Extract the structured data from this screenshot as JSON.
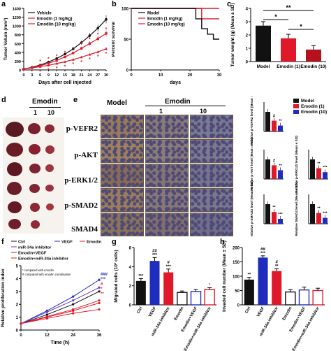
{
  "panel_labels": {
    "a": "a",
    "b": "b",
    "c": "c",
    "d": "d",
    "e": "e",
    "f": "f",
    "g": "g",
    "h": "h"
  },
  "colors": {
    "black": "#111111",
    "red": "#e0192a",
    "darkred": "#b5121b",
    "blue": "#1f2dbf",
    "navy": "#161f8c",
    "purple": "#6a3cc8"
  },
  "panel_d": {
    "group_label": "Emodin",
    "doses": [
      "1",
      "10"
    ]
  },
  "panel_e": {
    "columns": [
      "Model",
      "1",
      "10"
    ],
    "group_label": "Emodin",
    "rows": [
      "p-VEFR2",
      "p-AKT",
      "p-ERK1/2",
      "p-SMAD2",
      "SMAD4"
    ]
  },
  "chart_data": [
    {
      "id": "a",
      "type": "line",
      "ylabel": "Tumor Volum (mm³)",
      "xlabel": "Days after cell injected",
      "x": [
        0,
        3,
        6,
        9,
        12,
        15,
        18,
        21,
        24,
        27,
        30
      ],
      "xticks": [
        "0",
        "3",
        "6",
        "9",
        "12",
        "15",
        "18",
        "21",
        "24",
        "27",
        "30"
      ],
      "ylim": [
        0,
        1400
      ],
      "yticks": [
        "0",
        "200",
        "400",
        "600",
        "800",
        "1000",
        "1200",
        "1400"
      ],
      "series": [
        {
          "name": "Vehicle",
          "color": "#111111",
          "values": [
            20,
            60,
            110,
            180,
            260,
            360,
            480,
            620,
            780,
            950,
            1150
          ]
        },
        {
          "name": "Emodin (1 mg/kg)",
          "color": "#e0192a",
          "values": [
            20,
            55,
            95,
            150,
            215,
            295,
            385,
            490,
            600,
            710,
            830
          ]
        },
        {
          "name": "Emodiin (10 mg/kg)",
          "color": "#e0192a",
          "values": [
            20,
            45,
            75,
            105,
            145,
            185,
            235,
            290,
            350,
            410,
            480
          ]
        }
      ]
    },
    {
      "id": "b",
      "type": "line",
      "ylabel": "Percent survival",
      "xlabel": "days",
      "xlim": [
        0,
        30
      ],
      "xticks": [
        "0",
        "10",
        "20",
        "30"
      ],
      "ylim": [
        0,
        100
      ],
      "yticks": [
        "0",
        "50",
        "100"
      ],
      "series": [
        {
          "name": "Model",
          "color": "#111111",
          "x": [
            0,
            22,
            22,
            24,
            24,
            26,
            26,
            28,
            28,
            30
          ],
          "values": [
            100,
            100,
            83,
            83,
            67,
            67,
            58,
            58,
            50,
            50
          ]
        },
        {
          "name": "Emodin (1 mg/kg)",
          "color": "#e0192a",
          "x": [
            0,
            24,
            24,
            30
          ],
          "values": [
            100,
            100,
            83,
            83
          ]
        },
        {
          "name": "Emodin (10 mg/kg)",
          "color": "#e0192a",
          "x": [
            0,
            30
          ],
          "values": [
            100,
            100
          ]
        }
      ]
    },
    {
      "id": "c",
      "type": "bar",
      "ylabel": "Tumor weight (g) (Mean ± SD)",
      "categories": [
        "Model",
        "Emodin (1)",
        "Emodin (10)"
      ],
      "values": [
        2.7,
        1.75,
        0.9
      ],
      "errors": [
        0.3,
        0.3,
        0.3
      ],
      "colors": [
        "#111111",
        "#e0192a",
        "#b5121b"
      ],
      "ylim": [
        0,
        4
      ],
      "yticks": [
        "0",
        "1",
        "2",
        "3",
        "4"
      ],
      "significance": [
        {
          "pair": [
            0,
            1
          ],
          "label": "*"
        },
        {
          "pair": [
            0,
            2
          ],
          "label": "**"
        },
        {
          "pair": [
            1,
            2
          ],
          "label": "*"
        }
      ]
    },
    {
      "id": "e-right",
      "type": "bar",
      "legend": [
        "Model",
        "Emodin (1)",
        "Emodin (10)"
      ],
      "legend_colors": [
        "#111111",
        "#e0192a",
        "#1f2dbf"
      ],
      "subcharts": [
        {
          "ylabel": "Relative p-VEFR2 level (Mean ± SD)",
          "values": [
            1.0,
            0.55,
            0.3
          ],
          "marks": [
            "",
            "#",
            "**"
          ],
          "ylim": [
            0,
            1.5
          ]
        },
        {
          "ylabel": "Relative p-AKT level (Mean ± SD)",
          "values": [
            1.0,
            0.7,
            0.45
          ],
          "marks": [
            "",
            "#",
            "**"
          ],
          "ylim": [
            0,
            1.5
          ]
        },
        {
          "ylabel": "Relative p-ERK1/2 level (Mean ± SD)",
          "values": [
            1.0,
            0.55,
            0.35
          ],
          "marks": [
            "",
            "**",
            "***"
          ],
          "ylim": [
            0,
            1.5
          ]
        },
        {
          "ylabel": "Relative p-SMAD2 level (Mean ± SD)",
          "values": [
            1.0,
            0.6,
            0.25
          ],
          "marks": [
            "",
            "**",
            "***"
          ],
          "ylim": [
            0,
            1.5
          ]
        },
        {
          "ylabel": "Relative SMAD4 level (Mean ± SD)",
          "values": [
            1.0,
            0.55,
            0.3
          ],
          "marks": [
            "",
            "**",
            "***"
          ],
          "ylim": [
            0,
            1.5
          ]
        }
      ]
    },
    {
      "id": "f",
      "type": "line",
      "ylabel": "Relative proliferation index",
      "xlabel": "Time (h)",
      "x": [
        0,
        12,
        24,
        36
      ],
      "xticks": [
        "0",
        "12",
        "24",
        "36"
      ],
      "ylim": [
        0,
        5
      ],
      "yticks": [
        "0",
        "1",
        "2",
        "3",
        "4",
        "5"
      ],
      "legend": [
        "Ctrl",
        "VEGF",
        "Emodin",
        "miR-34a inhibitor",
        "Emodin+VEGF",
        "Emodin+miR-34a inhibitor"
      ],
      "series": [
        {
          "name": "Ctrl",
          "color": "#111111",
          "values": [
            0.5,
            1.2,
            2.0,
            3.0
          ]
        },
        {
          "name": "VEGF",
          "color": "#1f2dbf",
          "values": [
            0.5,
            1.5,
            2.6,
            3.9
          ]
        },
        {
          "name": "Emodin",
          "color": "#e0192a",
          "values": [
            0.5,
            0.9,
            1.3,
            1.6
          ]
        },
        {
          "name": "miR-34a inhibitor",
          "color": "#6a3cc8",
          "values": [
            0.5,
            1.4,
            2.3,
            3.3
          ]
        },
        {
          "name": "Emodin+VEGF",
          "color": "#e0192a",
          "values": [
            0.5,
            1.0,
            1.5,
            2.1
          ]
        },
        {
          "name": "Emodin+miR-34a inhibitor",
          "color": "#e0192a",
          "values": [
            0.5,
            1.05,
            1.6,
            2.3
          ]
        }
      ],
      "annotations": [
        "* compared with emodin",
        "# compared with emodin combination"
      ],
      "end_marks": [
        "###",
        "***",
        "#",
        "*",
        "**"
      ]
    },
    {
      "id": "g",
      "type": "bar",
      "ylabel": "Migrated cells (10² cells)",
      "categories": [
        "Ctrl",
        "VEGF",
        "miR-34a inhibitor",
        "Emodin",
        "Emodin+VEGF",
        "Emodin+miR-34a inhibitor"
      ],
      "values": [
        2.5,
        4.6,
        3.4,
        1.3,
        1.4,
        1.6
      ],
      "errors": [
        0.25,
        0.35,
        0.35,
        0.15,
        0.2,
        0.2
      ],
      "colors": [
        "#111111",
        "#1f2dbf",
        "#e0192a",
        "#111111",
        "#1f2dbf",
        "#e0192a"
      ],
      "filled": [
        true,
        true,
        true,
        false,
        false,
        false
      ],
      "marks": [
        "***",
        "##\n***",
        "#\n***",
        "",
        "",
        "*"
      ],
      "ylim": [
        0,
        6
      ],
      "yticks": [
        "0",
        "2",
        "4",
        "6"
      ]
    },
    {
      "id": "h",
      "type": "bar",
      "ylabel": "Invaded cell number (Mean ± SD)",
      "categories": [
        "Ctrl",
        "VEGF",
        "miR-34a inhibitor",
        "Emodin",
        "Emodin+VEGF",
        "Emodin+miR-34a inhibitor"
      ],
      "values": [
        88,
        165,
        118,
        45,
        52,
        50
      ],
      "errors": [
        8,
        6,
        8,
        8,
        10,
        8
      ],
      "colors": [
        "#111111",
        "#1f2dbf",
        "#e0192a",
        "#111111",
        "#1f2dbf",
        "#e0192a"
      ],
      "filled": [
        true,
        true,
        true,
        false,
        false,
        false
      ],
      "marks": [
        "**",
        "##\n***",
        "#\n**",
        "",
        "",
        ""
      ],
      "ylim": [
        0,
        200
      ],
      "yticks": [
        "0",
        "50",
        "100",
        "150",
        "200"
      ]
    }
  ]
}
